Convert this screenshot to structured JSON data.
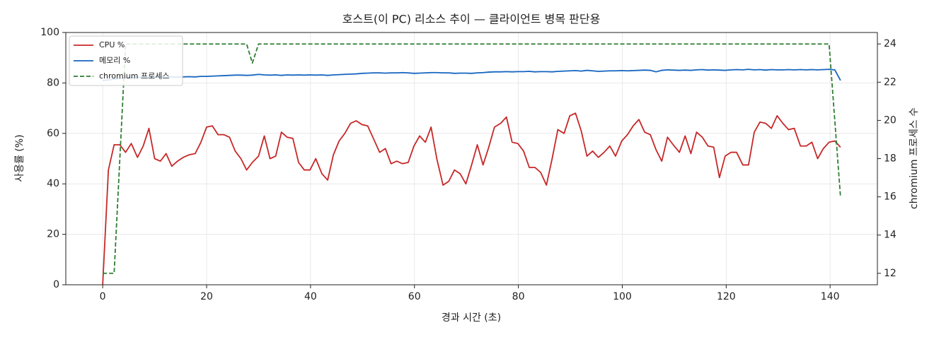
{
  "chart_data": {
    "type": "line",
    "title": "호스트(이 PC) 리소스 추이 — 클라이언트 병목 판단용",
    "x_label": "경과 시간 (초)",
    "y_label": "사용률 (%)",
    "y2_label": "chromium 프로세스 수",
    "x": [
      0,
      1.1,
      2.2,
      3.3,
      4.4,
      5.5,
      6.7,
      7.8,
      8.9,
      10,
      11.1,
      12.2,
      13.3,
      14.4,
      15.5,
      16.6,
      17.8,
      18.9,
      20,
      21.1,
      22.2,
      23.3,
      24.4,
      25.5,
      26.6,
      27.7,
      28.8,
      30,
      31.1,
      32.2,
      33.3,
      34.4,
      35.5,
      36.6,
      37.7,
      38.8,
      39.9,
      41.0,
      42.2,
      43.3,
      44.4,
      45.5,
      46.6,
      47.7,
      48.8,
      49.9,
      51.0,
      52.1,
      53.3,
      54.4,
      55.5,
      56.6,
      57.7,
      58.8,
      59.9,
      61.0,
      62.1,
      63.2,
      64.3,
      65.5,
      66.6,
      67.7,
      68.8,
      69.9,
      71.0,
      72.1,
      73.2,
      74.3,
      75.4,
      76.6,
      77.7,
      78.8,
      79.9,
      81.0,
      82.1,
      83.2,
      84.3,
      85.4,
      86.5,
      87.6,
      88.8,
      89.9,
      91.0,
      92.1,
      93.2,
      94.3,
      95.4,
      96.5,
      97.6,
      98.7,
      99.9,
      101.0,
      102.1,
      103.2,
      104.3,
      105.4,
      106.5,
      107.6,
      108.7,
      109.8,
      111.0,
      112.1,
      113.2,
      114.3,
      115.4,
      116.5,
      117.6,
      118.7,
      119.8,
      120.9,
      122.0,
      123.2,
      124.3,
      125.4,
      126.5,
      127.6,
      128.7,
      129.8,
      130.9,
      132.0,
      133.1,
      134.3,
      135.4,
      136.5,
      137.6,
      138.7,
      139.8,
      140.9,
      142.0
    ],
    "series": [
      {
        "name": "CPU %",
        "color": "#c62828",
        "values": [
          0,
          45.5,
          55.5,
          55.5,
          52.5,
          56,
          50.5,
          55,
          62,
          50,
          49,
          52,
          47,
          49,
          50.5,
          51.5,
          52,
          56.5,
          62.5,
          63,
          59.5,
          59.5,
          58.5,
          53,
          50,
          45.5,
          48.5,
          51,
          59,
          50,
          51,
          60.5,
          58.5,
          58,
          48.5,
          45.5,
          45.5,
          50,
          44,
          41.5,
          51.5,
          57,
          60,
          64,
          65,
          63.5,
          63,
          58,
          52.5,
          54,
          48,
          49,
          48,
          48.5,
          55,
          59,
          56.5,
          62.5,
          50,
          39.5,
          41,
          45.5,
          44,
          40,
          47.5,
          55.5,
          47.5,
          54.5,
          62.5,
          64,
          66.5,
          56.5,
          56,
          53,
          46.5,
          46.5,
          44.5,
          39.5,
          50,
          61.5,
          60,
          67,
          68,
          61,
          51,
          53,
          50.5,
          52.5,
          55,
          51,
          57,
          59.5,
          63,
          65.5,
          60.5,
          59.5,
          53.5,
          49,
          58.5,
          55.5,
          52.5,
          59,
          52,
          60.5,
          58.5,
          55,
          54.5,
          42.5,
          51,
          52.5,
          52.5,
          47.5,
          47.5,
          60.5,
          64.5,
          64,
          62,
          67,
          64,
          61.5,
          62,
          55,
          55,
          56.5,
          50,
          54,
          56.5,
          57,
          54.5
        ]
      },
      {
        "name": "메모리 %",
        "color": "#1565c0",
        "values": [
          81.0,
          81.2,
          81.5,
          81.8,
          82.0,
          82.1,
          82.2,
          82.3,
          82.2,
          82.3,
          82.4,
          82.3,
          82.4,
          82.3,
          82.4,
          82.5,
          82.4,
          82.6,
          82.6,
          82.7,
          82.8,
          82.9,
          83.0,
          83.1,
          83.1,
          83.0,
          83.1,
          83.4,
          83.2,
          83.1,
          83.2,
          83.0,
          83.2,
          83.1,
          83.2,
          83.1,
          83.2,
          83.1,
          83.2,
          83.0,
          83.2,
          83.3,
          83.4,
          83.5,
          83.6,
          83.8,
          83.9,
          84.0,
          84.0,
          83.9,
          84.0,
          84.0,
          84.1,
          84.0,
          83.8,
          83.9,
          84.0,
          84.1,
          84.1,
          84.0,
          84.0,
          83.8,
          83.9,
          83.9,
          83.8,
          84.0,
          84.1,
          84.3,
          84.4,
          84.4,
          84.5,
          84.4,
          84.5,
          84.5,
          84.6,
          84.4,
          84.5,
          84.5,
          84.4,
          84.6,
          84.7,
          84.8,
          84.9,
          84.7,
          85.0,
          84.8,
          84.6,
          84.7,
          84.8,
          84.8,
          84.9,
          84.8,
          84.9,
          85.0,
          85.1,
          85.0,
          84.4,
          85.0,
          85.2,
          85.1,
          85.0,
          85.1,
          85.0,
          85.2,
          85.3,
          85.1,
          85.2,
          85.1,
          85.0,
          85.2,
          85.3,
          85.2,
          85.4,
          85.2,
          85.3,
          85.1,
          85.3,
          85.2,
          85.2,
          85.3,
          85.2,
          85.3,
          85.2,
          85.3,
          85.2,
          85.3,
          85.4,
          85.2,
          81.0
        ]
      },
      {
        "name": "chromium 프로세스",
        "color": "#2e7d32",
        "axis": "y2",
        "dashed": true,
        "values": [
          12,
          12,
          12,
          18,
          24,
          24,
          24,
          24,
          24,
          24,
          24,
          24,
          24,
          24,
          24,
          24,
          24,
          24,
          24,
          24,
          24,
          24,
          24,
          24,
          24,
          24,
          23,
          24,
          24,
          24,
          24,
          24,
          24,
          24,
          24,
          24,
          24,
          24,
          24,
          24,
          24,
          24,
          24,
          24,
          24,
          24,
          24,
          24,
          24,
          24,
          24,
          24,
          24,
          24,
          24,
          24,
          24,
          24,
          24,
          24,
          24,
          24,
          24,
          24,
          24,
          24,
          24,
          24,
          24,
          24,
          24,
          24,
          24,
          24,
          24,
          24,
          24,
          24,
          24,
          24,
          24,
          24,
          24,
          24,
          24,
          24,
          24,
          24,
          24,
          24,
          24,
          24,
          24,
          24,
          24,
          24,
          24,
          24,
          24,
          24,
          24,
          24,
          24,
          24,
          24,
          24,
          24,
          24,
          24,
          24,
          24,
          24,
          24,
          24,
          24,
          24,
          24,
          24,
          24,
          24,
          24,
          24,
          24,
          24,
          24,
          24,
          24,
          20,
          16
        ]
      }
    ],
    "xlim": [
      -7.1,
      149.1
    ],
    "xticks": [
      0,
      20,
      40,
      60,
      80,
      100,
      120,
      140
    ],
    "ylim": [
      0,
      100
    ],
    "yticks": [
      0,
      20,
      40,
      60,
      80,
      100
    ],
    "y2lim": [
      11.4,
      24.6
    ],
    "y2ticks": [
      12,
      14,
      16,
      18,
      20,
      22,
      24
    ],
    "grid": true,
    "legend": "upper-left"
  }
}
